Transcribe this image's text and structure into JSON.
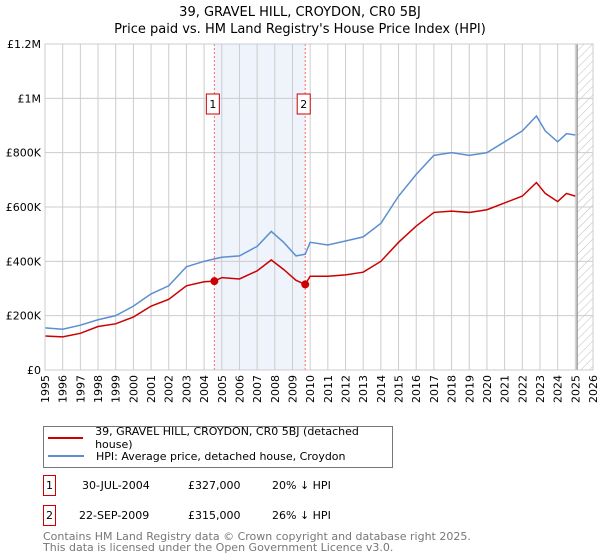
{
  "chart_data": {
    "type": "line",
    "title": "39, GRAVEL HILL, CROYDON, CR0 5BJ",
    "subtitle": "Price paid vs. HM Land Registry's House Price Index (HPI)",
    "xlim": [
      1995,
      2026
    ],
    "ylim": [
      0,
      1200000
    ],
    "y_ticks": [
      {
        "v": 0,
        "label": "£0"
      },
      {
        "v": 200000,
        "label": "£200K"
      },
      {
        "v": 400000,
        "label": "£400K"
      },
      {
        "v": 600000,
        "label": "£600K"
      },
      {
        "v": 800000,
        "label": "£800K"
      },
      {
        "v": 1000000,
        "label": "£1M"
      },
      {
        "v": 1200000,
        "label": "£1.2M"
      }
    ],
    "x_ticks": [
      "1995",
      "1996",
      "1997",
      "1998",
      "1999",
      "2000",
      "2001",
      "2002",
      "2003",
      "2004",
      "2005",
      "2006",
      "2007",
      "2008",
      "2009",
      "2010",
      "2011",
      "2012",
      "2013",
      "2014",
      "2015",
      "2016",
      "2017",
      "2018",
      "2019",
      "2020",
      "2021",
      "2022",
      "2023",
      "2024",
      "2025",
      "2026"
    ],
    "grid": true,
    "series": [
      {
        "name": "39, GRAVEL HILL, CROYDON, CR0 5BJ (detached house)",
        "color": "#cc0000",
        "x": [
          1995,
          1996,
          1997,
          1998,
          1999,
          2000,
          2001,
          2002,
          2003,
          2004,
          2004.58,
          2005,
          2006,
          2007,
          2007.8,
          2008.5,
          2009.2,
          2009.72,
          2010,
          2011,
          2012,
          2013,
          2014,
          2015,
          2016,
          2017,
          2018,
          2019,
          2020,
          2021,
          2022,
          2022.8,
          2023.3,
          2024,
          2024.5,
          2025
        ],
        "y": [
          125000,
          122000,
          135000,
          160000,
          170000,
          195000,
          235000,
          260000,
          310000,
          325000,
          327000,
          340000,
          335000,
          365000,
          405000,
          370000,
          330000,
          315000,
          345000,
          345000,
          350000,
          360000,
          400000,
          470000,
          530000,
          580000,
          585000,
          580000,
          590000,
          615000,
          640000,
          690000,
          650000,
          620000,
          650000,
          640000
        ]
      },
      {
        "name": "HPI: Average price, detached house, Croydon",
        "color": "#5b8fd0",
        "x": [
          1995,
          1996,
          1997,
          1998,
          1999,
          2000,
          2001,
          2002,
          2003,
          2004,
          2004.58,
          2005,
          2006,
          2007,
          2007.8,
          2008.5,
          2009.2,
          2009.72,
          2010,
          2011,
          2012,
          2013,
          2014,
          2015,
          2016,
          2017,
          2018,
          2019,
          2020,
          2021,
          2022,
          2022.8,
          2023.3,
          2024,
          2024.5,
          2025
        ],
        "y": [
          155000,
          150000,
          165000,
          185000,
          200000,
          235000,
          280000,
          310000,
          380000,
          400000,
          409000,
          415000,
          420000,
          455000,
          510000,
          470000,
          420000,
          426000,
          470000,
          460000,
          475000,
          490000,
          540000,
          640000,
          720000,
          790000,
          800000,
          790000,
          800000,
          840000,
          880000,
          935000,
          880000,
          840000,
          870000,
          865000
        ]
      }
    ],
    "sales": [
      {
        "label": "1",
        "x": 2004.58,
        "y": 327000
      },
      {
        "label": "2",
        "x": 2009.72,
        "y": 315000
      }
    ],
    "shaded_range": [
      2004.58,
      2009.72
    ],
    "forecast_from": 2025.1
  },
  "legend": {
    "items": [
      "39, GRAVEL HILL, CROYDON, CR0 5BJ (detached house)",
      "HPI: Average price, detached house, Croydon"
    ]
  },
  "transactions": [
    {
      "num": "1",
      "date": "30-JUL-2004",
      "price": "£327,000",
      "hpi": "20% ↓ HPI"
    },
    {
      "num": "2",
      "date": "22-SEP-2009",
      "price": "£315,000",
      "hpi": "26% ↓ HPI"
    }
  ],
  "footer": {
    "line1": "Contains HM Land Registry data © Crown copyright and database right 2025.",
    "line2": "This data is licensed under the Open Government Licence v3.0."
  }
}
